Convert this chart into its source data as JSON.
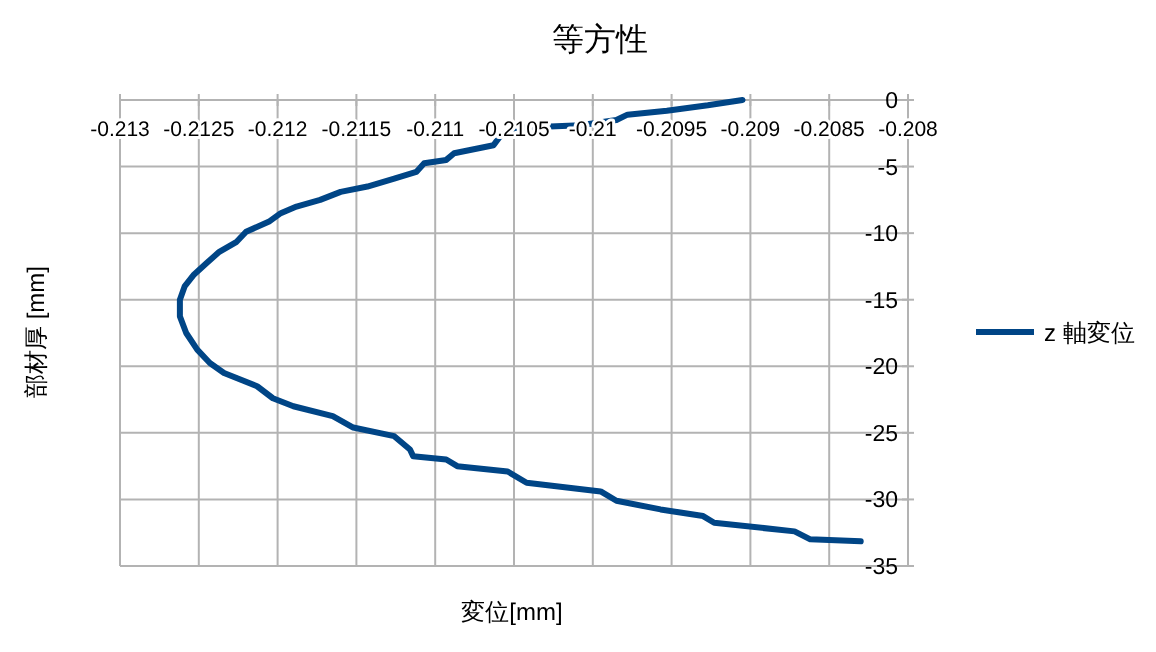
{
  "chart_data": {
    "type": "line",
    "title": "等方性",
    "xlabel": "変位[mm]",
    "ylabel": "部材厚 [mm]",
    "xlim": [
      -0.213,
      -0.208
    ],
    "xticks": [
      -0.213,
      -0.2125,
      -0.212,
      -0.2115,
      -0.211,
      -0.2105,
      -0.21,
      -0.2095,
      -0.209,
      -0.2085,
      -0.208
    ],
    "ylim": [
      -35,
      0
    ],
    "yticks": [
      0,
      -5,
      -10,
      -15,
      -20,
      -25,
      -30,
      -35
    ],
    "grid": true,
    "legend": "right",
    "marker": "none",
    "line_style": "solid",
    "series": [
      {
        "name": "z 軸変位",
        "color": "#004586",
        "x": [
          -0.20905,
          -0.20927,
          -0.20953,
          -0.20978,
          -0.20985,
          -0.21008,
          -0.2105,
          -0.21059,
          -0.21063,
          -0.21088,
          -0.21093,
          -0.21107,
          -0.21112,
          -0.21126,
          -0.21143,
          -0.2116,
          -0.21173,
          -0.21188,
          -0.21198,
          -0.21205,
          -0.2122,
          -0.21226,
          -0.21237,
          -0.21245,
          -0.21253,
          -0.21259,
          -0.21262,
          -0.21262,
          -0.21258,
          -0.21251,
          -0.21243,
          -0.21234,
          -0.21213,
          -0.21203,
          -0.2119,
          -0.21165,
          -0.21152,
          -0.21126,
          -0.21116,
          -0.21114,
          -0.21093,
          -0.21086,
          -0.21054,
          -0.21042,
          -0.20995,
          -0.20985,
          -0.20957,
          -0.2093,
          -0.20923,
          -0.20872,
          -0.20862,
          -0.2083
        ],
        "values": [
          0,
          -0.4,
          -0.8,
          -1.1,
          -1.5,
          -1.9,
          -2.1,
          -2.75,
          -3.4,
          -4,
          -4.5,
          -4.75,
          -5.4,
          -5.9,
          -6.5,
          -6.9,
          -7.5,
          -8,
          -8.5,
          -9.1,
          -9.9,
          -10.65,
          -11.4,
          -12.25,
          -13.1,
          -14,
          -15,
          -16.25,
          -17.5,
          -18.75,
          -19.75,
          -20.5,
          -21.5,
          -22.4,
          -23,
          -23.75,
          -24.6,
          -25.25,
          -26.25,
          -26.75,
          -27,
          -27.5,
          -27.9,
          -28.75,
          -29.4,
          -30.1,
          -30.75,
          -31.25,
          -31.75,
          -32.4,
          -33,
          -33.15
        ]
      }
    ]
  }
}
